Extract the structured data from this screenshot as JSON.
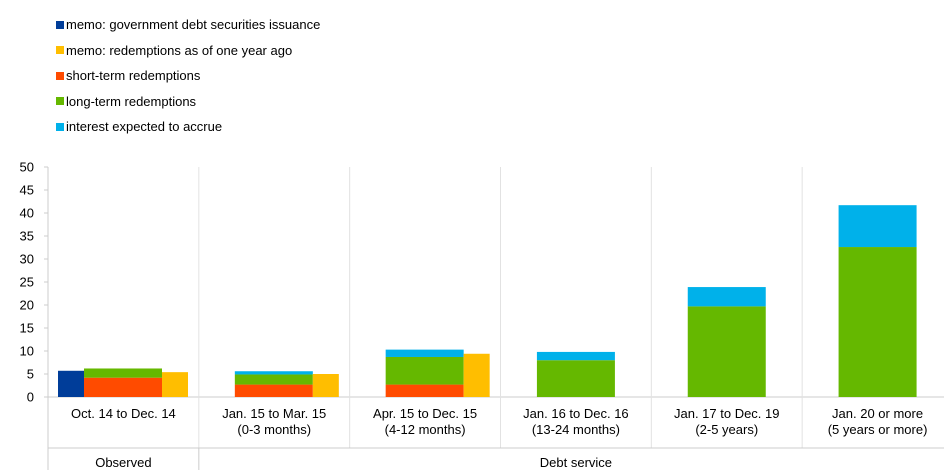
{
  "legend": {
    "items": [
      {
        "label": "memo: government debt securities issuance",
        "color": "#003d99"
      },
      {
        "label": "memo: redemptions as of one year ago",
        "color": "#ffbe00"
      },
      {
        "label": "short-term redemptions",
        "color": "#ff4b00"
      },
      {
        "label": "long-term redemptions",
        "color": "#65b800"
      },
      {
        "label": "interest expected to accrue",
        "color": "#00b1ea"
      }
    ]
  },
  "chart_data": {
    "type": "bar",
    "stacked": true,
    "categories": [
      [
        "Oct. 14 to Dec. 14"
      ],
      [
        "Jan. 15 to Mar. 15",
        "(0-3 months)"
      ],
      [
        "Apr. 15 to Dec. 15",
        "(4-12 months)"
      ],
      [
        "Jan. 16 to Dec. 16",
        "(13-24 months)"
      ],
      [
        "Jan. 17 to Dec. 19",
        "(2-5 years)"
      ],
      [
        "Jan. 20 or more",
        "(5 years or more)"
      ]
    ],
    "groups": [
      {
        "label": "Observed",
        "span": 1
      },
      {
        "label": "Debt service",
        "span": 5
      }
    ],
    "series": [
      {
        "name": "memo: government debt securities issuance",
        "color": "#003d99",
        "values": [
          5.7,
          null,
          null,
          null,
          null,
          null
        ]
      },
      {
        "name": "memo: redemptions as of one year ago",
        "color": "#ffbe00",
        "values": [
          5.4,
          5.0,
          9.4,
          null,
          null,
          null
        ]
      },
      {
        "name": "short-term redemptions",
        "color": "#ff4b00",
        "stack": "main",
        "values": [
          4.2,
          2.7,
          2.7,
          0,
          0,
          0
        ]
      },
      {
        "name": "long-term redemptions",
        "color": "#65b800",
        "stack": "main",
        "values": [
          2.0,
          2.2,
          6.0,
          8.0,
          19.7,
          32.6
        ]
      },
      {
        "name": "interest expected to accrue",
        "color": "#00b1ea",
        "stack": "main",
        "values": [
          0,
          0.7,
          1.6,
          1.8,
          4.2,
          9.1
        ]
      }
    ],
    "yticks": [
      0,
      5,
      10,
      15,
      20,
      25,
      30,
      35,
      40,
      45,
      50
    ],
    "ylim": [
      0,
      50
    ],
    "grid": false,
    "legend_position": "top-left"
  }
}
